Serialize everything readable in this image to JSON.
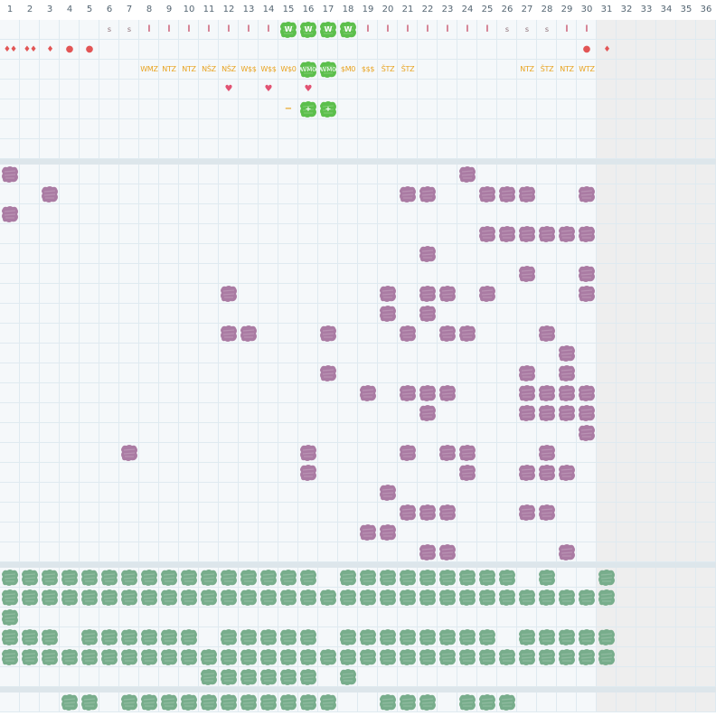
{
  "days": [
    "1",
    "2",
    "3",
    "4",
    "5",
    "6",
    "7",
    "8",
    "9",
    "10",
    "11",
    "12",
    "13",
    "14",
    "15",
    "16",
    "17",
    "18",
    "19",
    "20",
    "21",
    "22",
    "23",
    "24",
    "25",
    "26",
    "27",
    "28",
    "29",
    "30",
    "31",
    "32",
    "33",
    "34",
    "35",
    "36"
  ],
  "colors": {
    "background": "#f5f8fa",
    "gridline": "#dfeaf0",
    "past_shade": "#eeeeee",
    "purple": "#aa7ba3",
    "green_dark": "#78ad8c",
    "green_bright": "#5cbf4c",
    "orange": "#e8a320",
    "red": "#e25555",
    "heart": "#e25272"
  },
  "header_rows": {
    "row1": [
      {
        "day": 6,
        "kind": "s",
        "text": "s"
      },
      {
        "day": 7,
        "kind": "s",
        "text": "s"
      },
      {
        "day": 8,
        "kind": "l",
        "text": "l"
      },
      {
        "day": 9,
        "kind": "l",
        "text": "l"
      },
      {
        "day": 10,
        "kind": "l",
        "text": "l"
      },
      {
        "day": 11,
        "kind": "l",
        "text": "l"
      },
      {
        "day": 12,
        "kind": "l",
        "text": "l"
      },
      {
        "day": 13,
        "kind": "l",
        "text": "l"
      },
      {
        "day": 14,
        "kind": "l",
        "text": "l"
      },
      {
        "day": 15,
        "kind": "w",
        "text": "W"
      },
      {
        "day": 16,
        "kind": "w",
        "text": "W"
      },
      {
        "day": 17,
        "kind": "w",
        "text": "W"
      },
      {
        "day": 18,
        "kind": "w",
        "text": "W"
      },
      {
        "day": 19,
        "kind": "l",
        "text": "l"
      },
      {
        "day": 20,
        "kind": "l",
        "text": "l"
      },
      {
        "day": 21,
        "kind": "l",
        "text": "l"
      },
      {
        "day": 22,
        "kind": "l",
        "text": "l"
      },
      {
        "day": 23,
        "kind": "l",
        "text": "l"
      },
      {
        "day": 24,
        "kind": "l",
        "text": "l"
      },
      {
        "day": 25,
        "kind": "l",
        "text": "l"
      },
      {
        "day": 26,
        "kind": "s",
        "text": "s"
      },
      {
        "day": 27,
        "kind": "s",
        "text": "s"
      },
      {
        "day": 28,
        "kind": "s",
        "text": "s"
      },
      {
        "day": 29,
        "kind": "l",
        "text": "l"
      },
      {
        "day": 30,
        "kind": "l",
        "text": "l"
      }
    ],
    "row2": [
      {
        "day": 1,
        "kind": "drop",
        "text": "♦♦"
      },
      {
        "day": 2,
        "kind": "drop",
        "text": "♦♦"
      },
      {
        "day": 3,
        "kind": "drop",
        "text": "♦"
      },
      {
        "day": 4,
        "kind": "dot",
        "text": "●"
      },
      {
        "day": 5,
        "kind": "dot",
        "text": "●"
      },
      {
        "day": 30,
        "kind": "dot",
        "text": "●"
      },
      {
        "day": 31,
        "kind": "drop",
        "text": "♦"
      }
    ],
    "row3": [
      {
        "day": 8,
        "kind": "code",
        "text": "WMZ"
      },
      {
        "day": 9,
        "kind": "code",
        "text": "NTZ"
      },
      {
        "day": 10,
        "kind": "code",
        "text": "NTZ"
      },
      {
        "day": 11,
        "kind": "code",
        "text": "NŠZ"
      },
      {
        "day": 12,
        "kind": "code",
        "text": "NŠZ"
      },
      {
        "day": 13,
        "kind": "code",
        "text": "W$$"
      },
      {
        "day": 14,
        "kind": "code",
        "text": "W$$"
      },
      {
        "day": 15,
        "kind": "code",
        "text": "W$0"
      },
      {
        "day": 16,
        "kind": "wcode",
        "text": "WM0"
      },
      {
        "day": 17,
        "kind": "wcode",
        "text": "WM0"
      },
      {
        "day": 18,
        "kind": "code",
        "text": "$M0"
      },
      {
        "day": 19,
        "kind": "code",
        "text": "$$$"
      },
      {
        "day": 20,
        "kind": "code",
        "text": "ŠTZ"
      },
      {
        "day": 21,
        "kind": "code",
        "text": "ŠTZ"
      },
      {
        "day": 27,
        "kind": "code",
        "text": "NTZ"
      },
      {
        "day": 28,
        "kind": "code",
        "text": "ŠTZ"
      },
      {
        "day": 29,
        "kind": "code",
        "text": "NTZ"
      },
      {
        "day": 30,
        "kind": "code",
        "text": "WTZ"
      }
    ],
    "row4": [
      {
        "day": 12,
        "kind": "heart",
        "text": "♥"
      },
      {
        "day": 14,
        "kind": "heart",
        "text": "♥"
      },
      {
        "day": 16,
        "kind": "heart",
        "text": "♥"
      }
    ],
    "row5": [
      {
        "day": 15,
        "kind": "minus",
        "text": "−"
      },
      {
        "day": 16,
        "kind": "plus",
        "text": "+"
      },
      {
        "day": 17,
        "kind": "plus",
        "text": "+"
      }
    ]
  },
  "purple_section": {
    "rows": [
      [
        1,
        24
      ],
      [
        3,
        21,
        22,
        25,
        26,
        27,
        30
      ],
      [
        1
      ],
      [
        25,
        26,
        27,
        28,
        29,
        30
      ],
      [
        22
      ],
      [
        27,
        30
      ],
      [
        12,
        20,
        22,
        23,
        25,
        30
      ],
      [
        20,
        22
      ],
      [
        12,
        13,
        17,
        21,
        23,
        24,
        28
      ],
      [
        29
      ],
      [
        17,
        27,
        29
      ],
      [
        19,
        21,
        22,
        23,
        27,
        28,
        29,
        30
      ],
      [
        22,
        27,
        28,
        29,
        30
      ],
      [
        30
      ],
      [
        7,
        16,
        21,
        23,
        24,
        28
      ],
      [
        16,
        24,
        27,
        28,
        29
      ],
      [
        20
      ],
      [
        21,
        22,
        23,
        27,
        28
      ],
      [
        19,
        20
      ],
      [
        22,
        23,
        29
      ]
    ]
  },
  "green_section": {
    "rows": [
      [
        1,
        2,
        3,
        4,
        5,
        6,
        7,
        8,
        9,
        10,
        11,
        12,
        13,
        14,
        15,
        16,
        18,
        19,
        20,
        21,
        22,
        23,
        24,
        25,
        26,
        28,
        31
      ],
      [
        1,
        2,
        3,
        4,
        5,
        6,
        7,
        8,
        9,
        10,
        11,
        12,
        13,
        14,
        15,
        16,
        17,
        18,
        19,
        20,
        21,
        22,
        23,
        24,
        25,
        26,
        27,
        28,
        29,
        30,
        31
      ],
      [
        1
      ],
      [
        1,
        2,
        3,
        5,
        6,
        7,
        8,
        9,
        10,
        12,
        13,
        14,
        15,
        16,
        18,
        19,
        20,
        21,
        22,
        23,
        24,
        25,
        27,
        28,
        29,
        30,
        31
      ],
      [
        1,
        2,
        3,
        4,
        5,
        6,
        7,
        8,
        9,
        10,
        11,
        12,
        13,
        14,
        15,
        16,
        17,
        18,
        19,
        20,
        21,
        22,
        23,
        24,
        25,
        26,
        27,
        28,
        29,
        30,
        31
      ],
      [
        11,
        12,
        13,
        14,
        15,
        16,
        18
      ]
    ]
  },
  "bottom_section": {
    "rows": [
      [
        4,
        5,
        7,
        8,
        9,
        10,
        11,
        12,
        13,
        14,
        15,
        16,
        17,
        20,
        21,
        22,
        24,
        25,
        26
      ]
    ]
  }
}
